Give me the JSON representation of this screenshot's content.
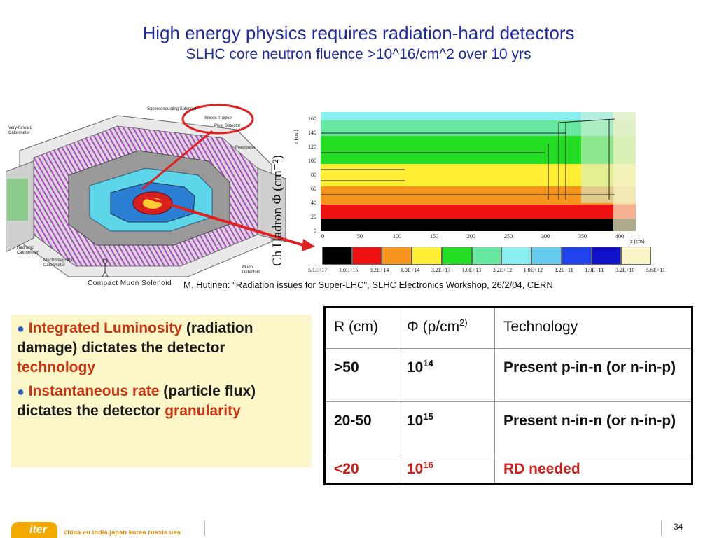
{
  "title": {
    "line1": "High energy physics requires radiation-hard detectors",
    "line2": "SLHC core neutron fluence >10^16/cm^2 over 10 yrs"
  },
  "detector": {
    "labels": {
      "superconducting_solenoid": "Superconducting Solenoid",
      "silicon_tracker": "Silicon Tracker",
      "pixel_detector": "Pixel Detector",
      "very_forward_calorimeter": "Very-forward\nCalorimeter",
      "preshower": "Preshower",
      "hadronic_calorimeter": "Hadronic\nCalorimeter",
      "electromagnetic_calorimeter": "Electromagnetic\nCalorimeter",
      "muon_detectors": "Muon\nDetectors",
      "compact_muon_solenoid": "Compact  Muon  Solenoid"
    }
  },
  "fluence_plot": {
    "y_axis_label": "Ch Hadron Φ (cm⁻²)",
    "r_axis_label": "r (cm)",
    "z_axis_label": "z (cm)",
    "y_ticks": [
      "160",
      "140",
      "120",
      "100",
      "80",
      "60",
      "40",
      "20",
      "0"
    ],
    "x_ticks": [
      "0",
      "50",
      "100",
      "150",
      "200",
      "250",
      "300",
      "350",
      "400"
    ],
    "scale_colors": [
      "#000000",
      "#ee1111",
      "#f7941d",
      "#ffee33",
      "#22dd22",
      "#66e8a0",
      "#88eeee",
      "#66ccee",
      "#2244ee",
      "#1111cc",
      "#f8f4c8"
    ],
    "scale_labels": [
      "5.1E+17",
      "1.0E+15",
      "3.2E+14",
      "1.0E+14",
      "3.2E+13",
      "1.0E+13",
      "3.2E+12",
      "1.0E+12",
      "3.2E+11",
      "1.0E+11",
      "3.2E+10",
      "5.6E+11"
    ]
  },
  "citation": "M. Hutinen: \"Radiation issues for Super-LHC\", SLHC Electronics Workshop, 26/2/04, CERN",
  "bullets": {
    "b1": {
      "hl1": "Integrated Luminosity",
      "plain": "(radiation damage) dictates the detector",
      "hl2": "technology"
    },
    "b2": {
      "hl1": "Instantaneous rate",
      "plain1": "(particle flux) dictates the detector",
      "hl2": "granularity"
    }
  },
  "table": {
    "header": {
      "r": "R (cm)",
      "phi": "Φ (p/cm",
      "phi_sup": "2)",
      "tech": "Technology"
    },
    "rows": [
      {
        "r": ">50",
        "phi_base": "10",
        "phi_exp": "14",
        "tech": "Present p-in-n  (or n-in-p)"
      },
      {
        "r": "20-50",
        "phi_base": "10",
        "phi_exp": "15",
        "tech": "Present  n-in-n (or n-in-p)"
      },
      {
        "r": "<20",
        "phi_base": "10",
        "phi_exp": "16",
        "tech": "RD needed"
      }
    ]
  },
  "footer": {
    "logo": "iter",
    "partners": "china eu india japan korea russia usa",
    "page_number": "34"
  }
}
